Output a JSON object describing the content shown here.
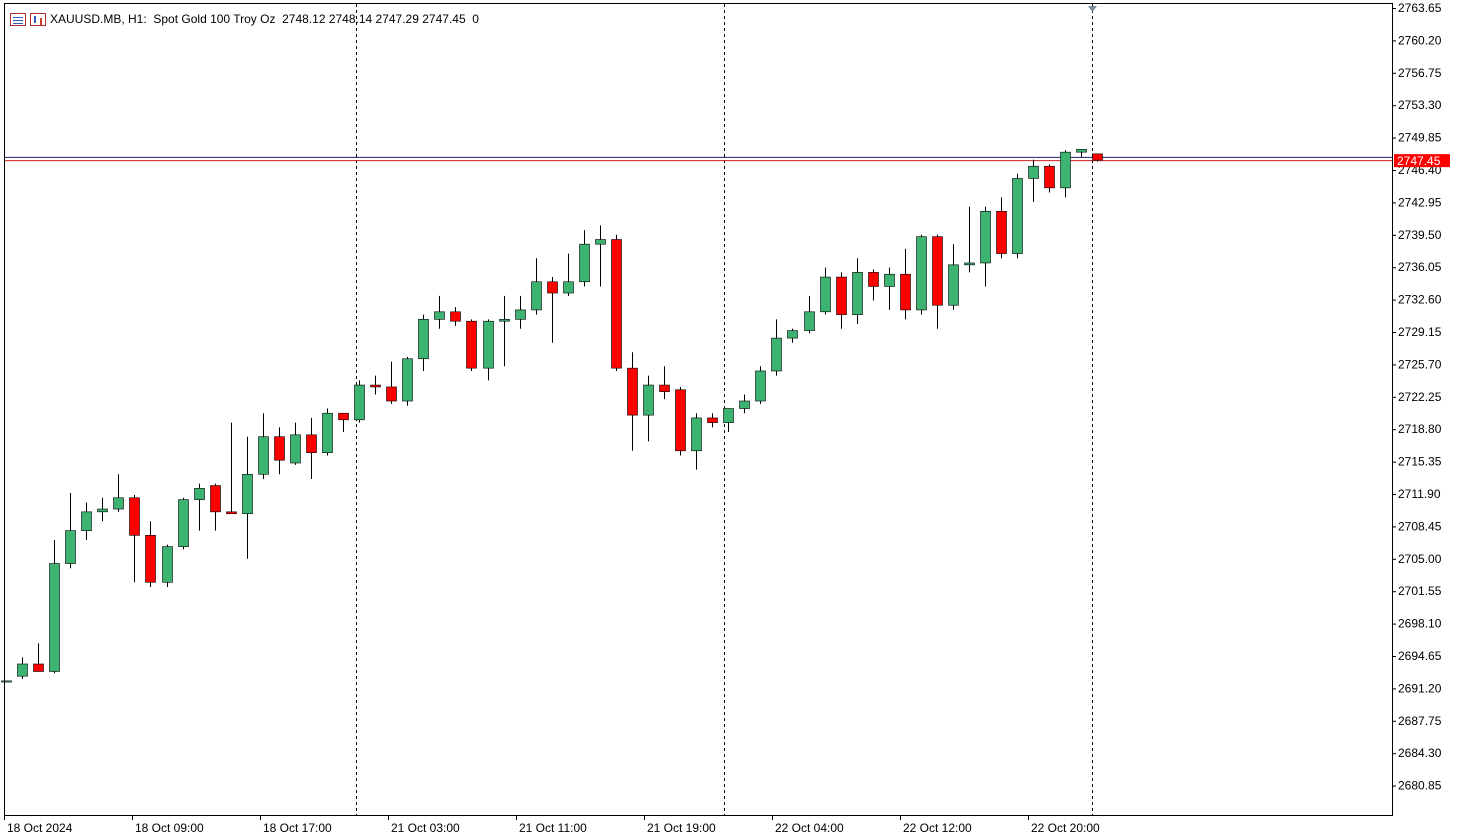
{
  "window": {
    "symbol": "XAUUSD.MB",
    "timeframe": "H1:",
    "description": "Spot Gold 100 Troy Oz",
    "ohlc": "2748.12 2748.14 2747.29 2747.45",
    "volume": "0",
    "icons": [
      "chart-list-icon",
      "chart-window-icon"
    ]
  },
  "colors": {
    "bull": "#3cb371",
    "bear": "#ff0000",
    "bid_line": "#d02020",
    "ask_line": "#1e2060",
    "price_tag_bg": "#ff0000",
    "price_tag_top": "#0000ff",
    "grid_separator": "#000000"
  },
  "current_price_label": "2747.45",
  "chart_data": {
    "type": "candlestick",
    "y_ticks": [
      "2763.65",
      "2760.20",
      "2756.75",
      "2753.30",
      "2749.85",
      "2746.40",
      "2742.95",
      "2739.50",
      "2736.05",
      "2732.60",
      "2729.15",
      "2725.70",
      "2722.25",
      "2718.80",
      "2715.35",
      "2711.90",
      "2708.45",
      "2705.00",
      "2701.55",
      "2698.10",
      "2694.65",
      "2691.20",
      "2687.75",
      "2684.30",
      "2680.85"
    ],
    "x_labels": [
      "18 Oct 2024",
      "18 Oct 09:00",
      "18 Oct 17:00",
      "21 Oct 03:00",
      "21 Oct 11:00",
      "21 Oct 19:00",
      "22 Oct 04:00",
      "22 Oct 12:00",
      "22 Oct 20:00"
    ],
    "ylim": [
      2678.5,
      2764.2
    ],
    "bid": 2747.45,
    "ask": 2747.8,
    "candles": [
      {
        "o": 2692.0,
        "h": 2692.0,
        "l": 2692.0,
        "c": 2692.0
      },
      {
        "o": 2692.5,
        "h": 2694.5,
        "l": 2692.2,
        "c": 2693.8
      },
      {
        "o": 2693.8,
        "h": 2696.0,
        "l": 2693.0,
        "c": 2693.0
      },
      {
        "o": 2693.0,
        "h": 2707.0,
        "l": 2692.8,
        "c": 2704.5
      },
      {
        "o": 2704.5,
        "h": 2712.0,
        "l": 2704.0,
        "c": 2708.0
      },
      {
        "o": 2708.0,
        "h": 2711.0,
        "l": 2707.0,
        "c": 2710.0
      },
      {
        "o": 2710.0,
        "h": 2711.5,
        "l": 2709.0,
        "c": 2710.3
      },
      {
        "o": 2710.3,
        "h": 2714.0,
        "l": 2710.0,
        "c": 2711.5
      },
      {
        "o": 2711.5,
        "h": 2711.8,
        "l": 2702.5,
        "c": 2707.5
      },
      {
        "o": 2707.5,
        "h": 2709.0,
        "l": 2702.0,
        "c": 2702.5
      },
      {
        "o": 2702.5,
        "h": 2706.5,
        "l": 2702.0,
        "c": 2706.3
      },
      {
        "o": 2706.3,
        "h": 2711.5,
        "l": 2706.0,
        "c": 2711.3
      },
      {
        "o": 2711.3,
        "h": 2713.0,
        "l": 2708.0,
        "c": 2712.5
      },
      {
        "o": 2712.8,
        "h": 2713.0,
        "l": 2708.0,
        "c": 2710.0
      },
      {
        "o": 2710.0,
        "h": 2719.5,
        "l": 2710.0,
        "c": 2709.8
      },
      {
        "o": 2709.8,
        "h": 2718.0,
        "l": 2705.0,
        "c": 2714.0
      },
      {
        "o": 2714.0,
        "h": 2720.5,
        "l": 2713.5,
        "c": 2718.0
      },
      {
        "o": 2718.0,
        "h": 2719.0,
        "l": 2714.0,
        "c": 2715.5
      },
      {
        "o": 2715.2,
        "h": 2719.5,
        "l": 2715.0,
        "c": 2718.2
      },
      {
        "o": 2718.2,
        "h": 2720.0,
        "l": 2713.5,
        "c": 2716.3
      },
      {
        "o": 2716.3,
        "h": 2721.0,
        "l": 2716.0,
        "c": 2720.5
      },
      {
        "o": 2720.5,
        "h": 2720.5,
        "l": 2718.5,
        "c": 2719.8
      },
      {
        "o": 2719.8,
        "h": 2724.0,
        "l": 2719.5,
        "c": 2723.5
      },
      {
        "o": 2723.5,
        "h": 2724.5,
        "l": 2722.5,
        "c": 2723.3
      },
      {
        "o": 2723.3,
        "h": 2726.0,
        "l": 2721.5,
        "c": 2721.8
      },
      {
        "o": 2721.8,
        "h": 2726.5,
        "l": 2721.3,
        "c": 2726.3
      },
      {
        "o": 2726.3,
        "h": 2731.0,
        "l": 2725.0,
        "c": 2730.5
      },
      {
        "o": 2730.5,
        "h": 2733.0,
        "l": 2729.5,
        "c": 2731.3
      },
      {
        "o": 2731.3,
        "h": 2731.8,
        "l": 2729.8,
        "c": 2730.3
      },
      {
        "o": 2730.3,
        "h": 2730.5,
        "l": 2725.0,
        "c": 2725.3
      },
      {
        "o": 2725.3,
        "h": 2730.5,
        "l": 2724.0,
        "c": 2730.3
      },
      {
        "o": 2730.3,
        "h": 2733.0,
        "l": 2725.5,
        "c": 2730.5
      },
      {
        "o": 2730.5,
        "h": 2733.0,
        "l": 2729.5,
        "c": 2731.5
      },
      {
        "o": 2731.5,
        "h": 2737.0,
        "l": 2731.0,
        "c": 2734.5
      },
      {
        "o": 2734.5,
        "h": 2735.0,
        "l": 2728.0,
        "c": 2733.3
      },
      {
        "o": 2733.3,
        "h": 2737.5,
        "l": 2733.0,
        "c": 2734.5
      },
      {
        "o": 2734.5,
        "h": 2740.0,
        "l": 2734.0,
        "c": 2738.5
      },
      {
        "o": 2738.5,
        "h": 2740.5,
        "l": 2734.0,
        "c": 2739.0
      },
      {
        "o": 2739.0,
        "h": 2739.5,
        "l": 2725.0,
        "c": 2725.3
      },
      {
        "o": 2725.3,
        "h": 2727.0,
        "l": 2716.5,
        "c": 2720.3
      },
      {
        "o": 2720.3,
        "h": 2724.5,
        "l": 2717.5,
        "c": 2723.5
      },
      {
        "o": 2723.5,
        "h": 2725.5,
        "l": 2722.0,
        "c": 2722.8
      },
      {
        "o": 2723.0,
        "h": 2723.3,
        "l": 2716.0,
        "c": 2716.5
      },
      {
        "o": 2716.5,
        "h": 2720.5,
        "l": 2714.5,
        "c": 2720.0
      },
      {
        "o": 2720.0,
        "h": 2720.5,
        "l": 2719.0,
        "c": 2719.5
      },
      {
        "o": 2719.5,
        "h": 2721.0,
        "l": 2718.5,
        "c": 2721.0
      },
      {
        "o": 2721.0,
        "h": 2722.5,
        "l": 2720.5,
        "c": 2721.8
      },
      {
        "o": 2721.8,
        "h": 2725.5,
        "l": 2721.5,
        "c": 2725.0
      },
      {
        "o": 2725.0,
        "h": 2730.5,
        "l": 2724.5,
        "c": 2728.5
      },
      {
        "o": 2728.5,
        "h": 2729.5,
        "l": 2728.0,
        "c": 2729.3
      },
      {
        "o": 2729.3,
        "h": 2733.0,
        "l": 2729.0,
        "c": 2731.3
      },
      {
        "o": 2731.3,
        "h": 2736.0,
        "l": 2731.0,
        "c": 2735.0
      },
      {
        "o": 2735.0,
        "h": 2735.5,
        "l": 2729.5,
        "c": 2731.0
      },
      {
        "o": 2731.0,
        "h": 2737.0,
        "l": 2730.0,
        "c": 2735.5
      },
      {
        "o": 2735.5,
        "h": 2735.8,
        "l": 2732.5,
        "c": 2734.0
      },
      {
        "o": 2734.0,
        "h": 2736.0,
        "l": 2731.5,
        "c": 2735.3
      },
      {
        "o": 2735.3,
        "h": 2738.0,
        "l": 2730.5,
        "c": 2731.5
      },
      {
        "o": 2731.5,
        "h": 2739.5,
        "l": 2731.0,
        "c": 2739.3
      },
      {
        "o": 2739.3,
        "h": 2739.5,
        "l": 2729.5,
        "c": 2732.0
      },
      {
        "o": 2732.0,
        "h": 2738.5,
        "l": 2731.5,
        "c": 2736.3
      },
      {
        "o": 2736.3,
        "h": 2742.5,
        "l": 2735.5,
        "c": 2736.5
      },
      {
        "o": 2736.5,
        "h": 2742.5,
        "l": 2734.0,
        "c": 2742.0
      },
      {
        "o": 2742.0,
        "h": 2743.5,
        "l": 2737.0,
        "c": 2737.5
      },
      {
        "o": 2737.5,
        "h": 2746.0,
        "l": 2737.0,
        "c": 2745.5
      },
      {
        "o": 2745.5,
        "h": 2747.5,
        "l": 2743.0,
        "c": 2746.8
      },
      {
        "o": 2746.8,
        "h": 2747.0,
        "l": 2744.0,
        "c": 2744.5
      },
      {
        "o": 2744.5,
        "h": 2748.5,
        "l": 2743.5,
        "c": 2748.3
      },
      {
        "o": 2748.3,
        "h": 2748.6,
        "l": 2747.8,
        "c": 2748.6
      },
      {
        "o": 2748.12,
        "h": 2748.14,
        "l": 2747.29,
        "c": 2747.45
      }
    ]
  }
}
